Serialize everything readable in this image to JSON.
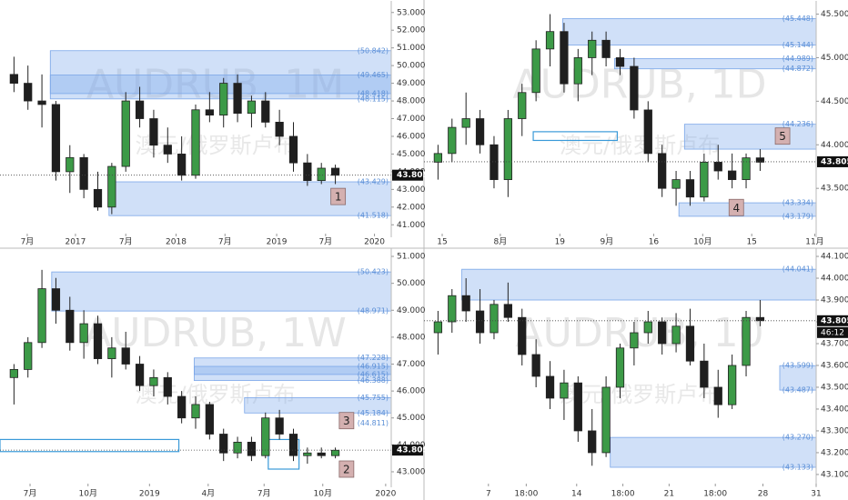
{
  "chart_data": [
    {
      "type": "candlestick",
      "watermark": "AUDRUB, 1M",
      "subtitle": "澳元/俄罗斯卢布",
      "up_color": "#3c9a47",
      "down_color": "#1f1f1f",
      "xlim": [
        -1,
        27
      ],
      "ylim": [
        40.5,
        53.45
      ],
      "xticks": [
        {
          "value": 0.95,
          "label": "7月"
        },
        {
          "value": 4.4,
          "label": "2017"
        },
        {
          "value": 8,
          "label": "7月"
        },
        {
          "value": 11.6,
          "label": "2018"
        },
        {
          "value": 15.1,
          "label": "7月"
        },
        {
          "value": 18.8,
          "label": "2019"
        },
        {
          "value": 22.3,
          "label": "7月"
        },
        {
          "value": 25.8,
          "label": "2020"
        }
      ],
      "yticks": [
        {
          "value": 41,
          "label": "41.000"
        },
        {
          "value": 42,
          "label": "42.000"
        },
        {
          "value": 43,
          "label": "43.000"
        },
        {
          "value": 44,
          "label": "44.000"
        },
        {
          "value": 45,
          "label": "45.000"
        },
        {
          "value": 46,
          "label": "46.000"
        },
        {
          "value": 47,
          "label": "47.000"
        },
        {
          "value": 48,
          "label": "48.000"
        },
        {
          "value": 49,
          "label": "49.000"
        },
        {
          "value": 50,
          "label": "50.000"
        },
        {
          "value": 51,
          "label": "51.000"
        },
        {
          "value": 52,
          "label": "52.000"
        },
        {
          "value": 53,
          "label": "53.000"
        }
      ],
      "x": [
        0,
        1,
        2,
        3,
        4,
        5,
        6,
        7,
        8,
        9,
        10,
        11,
        12,
        13,
        14,
        15,
        16,
        17,
        18,
        19,
        20,
        21,
        22,
        23
      ],
      "open": [
        49.5,
        49.0,
        48.0,
        47.8,
        44.0,
        44.8,
        43.0,
        42.0,
        44.3,
        48.0,
        47.0,
        45.5,
        45.0,
        43.8,
        47.5,
        47.2,
        49.0,
        47.3,
        48.0,
        46.8,
        46.0,
        44.5,
        43.5,
        44.2
      ],
      "high": [
        50.5,
        50.0,
        49.5,
        48.0,
        45.5,
        45.0,
        44.0,
        44.5,
        48.5,
        48.8,
        47.5,
        46.5,
        46.0,
        47.8,
        48.5,
        49.3,
        49.5,
        48.3,
        48.5,
        47.5,
        46.8,
        45.0,
        44.5,
        44.4
      ],
      "low": [
        48.5,
        47.5,
        46.5,
        43.5,
        42.8,
        42.5,
        41.8,
        41.6,
        44.0,
        46.5,
        44.8,
        44.5,
        43.5,
        43.6,
        46.8,
        46.5,
        46.8,
        46.5,
        46.5,
        45.5,
        44.0,
        43.2,
        43.3,
        43.3
      ],
      "close": [
        49.0,
        48.0,
        47.8,
        44.0,
        44.8,
        43.0,
        42.0,
        44.3,
        48.0,
        47.0,
        45.5,
        45.0,
        43.8,
        47.5,
        47.2,
        49.0,
        47.3,
        48.0,
        46.8,
        46.0,
        44.5,
        43.5,
        44.2,
        43.8
      ],
      "zones": [
        {
          "start": 2.6,
          "low": 48.418,
          "high": 50.842
        },
        {
          "start": 2.6,
          "low": 48.115,
          "high": 49.465
        },
        {
          "start": 6.8,
          "low": 41.518,
          "high": 43.429
        }
      ],
      "boxes": [],
      "levels": [
        {
          "value": 50.842,
          "label": "(50.842)"
        },
        {
          "value": 49.465,
          "label": "(49.465)"
        },
        {
          "value": 48.418,
          "label": "(48.418)"
        },
        {
          "value": 48.115,
          "label": "(48.115)"
        },
        {
          "value": 43.429,
          "label": "(43.429)"
        },
        {
          "value": 41.518,
          "label": "(41.518)"
        }
      ],
      "price": 43.805,
      "markers": [
        {
          "label": "1",
          "x": 23.2,
          "y": 42.6
        }
      ]
    },
    {
      "type": "candlestick",
      "watermark": "AUDRUB, 1D",
      "subtitle": "澳元/俄罗斯卢布",
      "up_color": "#3c9a47",
      "down_color": "#1f1f1f",
      "xlim": [
        -1,
        27
      ],
      "ylim": [
        42.98,
        45.61
      ],
      "xticks": [
        {
          "value": 0.3,
          "label": "15"
        },
        {
          "value": 4.45,
          "label": "8月"
        },
        {
          "value": 8.7,
          "label": "19"
        },
        {
          "value": 12.05,
          "label": "9月"
        },
        {
          "value": 15.4,
          "label": "16"
        },
        {
          "value": 18.9,
          "label": "10月"
        },
        {
          "value": 22.4,
          "label": "15"
        },
        {
          "value": 26.9,
          "label": "11月"
        }
      ],
      "yticks": [
        {
          "value": 43.5,
          "label": "43.500"
        },
        {
          "value": 44,
          "label": "44.000"
        },
        {
          "value": 44.5,
          "label": "44.500"
        },
        {
          "value": 45,
          "label": "45.000"
        },
        {
          "value": 45.5,
          "label": "45.500"
        }
      ],
      "x": [
        0,
        1,
        2,
        3,
        4,
        5,
        6,
        7,
        8,
        9,
        10,
        11,
        12,
        13,
        14,
        15,
        16,
        17,
        18,
        19,
        20,
        21,
        22,
        23
      ],
      "open": [
        43.8,
        43.9,
        44.2,
        44.3,
        44.0,
        43.6,
        44.3,
        44.6,
        45.1,
        45.3,
        44.7,
        45.0,
        45.2,
        45.0,
        44.9,
        44.4,
        43.9,
        43.5,
        43.6,
        43.4,
        43.8,
        43.7,
        43.6,
        43.85
      ],
      "high": [
        44.0,
        44.3,
        44.6,
        44.4,
        44.1,
        44.4,
        44.7,
        45.2,
        45.5,
        45.4,
        45.1,
        45.3,
        45.3,
        45.1,
        45.0,
        44.5,
        44.0,
        43.7,
        43.7,
        43.9,
        44.0,
        43.9,
        43.9,
        43.95
      ],
      "low": [
        43.6,
        43.8,
        44.0,
        43.9,
        43.5,
        43.4,
        44.1,
        44.5,
        44.9,
        44.6,
        44.5,
        44.8,
        44.9,
        44.8,
        44.3,
        43.8,
        43.4,
        43.3,
        43.3,
        43.35,
        43.6,
        43.5,
        43.5,
        43.7
      ],
      "close": [
        43.9,
        44.2,
        44.3,
        44.0,
        43.6,
        44.3,
        44.6,
        45.1,
        45.3,
        44.7,
        45.0,
        45.2,
        45.0,
        44.9,
        44.4,
        43.9,
        43.5,
        43.6,
        43.4,
        43.8,
        43.7,
        43.6,
        43.85,
        43.8
      ],
      "zones": [
        {
          "start": 8.9,
          "low": 45.144,
          "high": 45.448
        },
        {
          "start": 12.6,
          "low": 44.872,
          "high": 44.989
        },
        {
          "start": 17.6,
          "low": 43.95,
          "high": 44.236
        },
        {
          "start": 17.2,
          "low": 43.179,
          "high": 43.334
        }
      ],
      "boxes": [
        {
          "start": 6.8,
          "end": 12.8,
          "low": 44.05,
          "high": 44.15
        }
      ],
      "levels": [
        {
          "value": 45.448,
          "label": "(45.448)"
        },
        {
          "value": 45.144,
          "label": "(45.144)"
        },
        {
          "value": 44.989,
          "label": "(44.989)"
        },
        {
          "value": 44.872,
          "label": "(44.872)"
        },
        {
          "value": 44.236,
          "label": "(44.236)"
        },
        {
          "value": 43.334,
          "label": "(43.334)"
        },
        {
          "value": 43.179,
          "label": "(43.179)"
        }
      ],
      "price": 43.805,
      "markers": [
        {
          "label": "5",
          "x": 24.6,
          "y": 44.1
        },
        {
          "label": "4",
          "x": 21.3,
          "y": 43.28
        }
      ]
    },
    {
      "type": "candlestick",
      "watermark": "AUDRUB, 1W",
      "subtitle": "澳元/俄罗斯卢布",
      "up_color": "#3c9a47",
      "down_color": "#1f1f1f",
      "xlim": [
        -1,
        27
      ],
      "ylim": [
        42.56,
        51.17
      ],
      "xticks": [
        {
          "value": 1.15,
          "label": "7月"
        },
        {
          "value": 5.3,
          "label": "10月"
        },
        {
          "value": 9.7,
          "label": "2019"
        },
        {
          "value": 13.9,
          "label": "4月"
        },
        {
          "value": 17.9,
          "label": "7月"
        },
        {
          "value": 22.1,
          "label": "10月"
        },
        {
          "value": 26.6,
          "label": "2020"
        }
      ],
      "yticks": [
        {
          "value": 43,
          "label": "43.000"
        },
        {
          "value": 44,
          "label": "44.000"
        },
        {
          "value": 45,
          "label": "45.000"
        },
        {
          "value": 46,
          "label": "46.000"
        },
        {
          "value": 47,
          "label": "47.000"
        },
        {
          "value": 48,
          "label": "48.000"
        },
        {
          "value": 49,
          "label": "49.000"
        },
        {
          "value": 50,
          "label": "50.000"
        },
        {
          "value": 51,
          "label": "51.000"
        }
      ],
      "x": [
        0,
        1,
        2,
        3,
        4,
        5,
        6,
        7,
        8,
        9,
        10,
        11,
        12,
        13,
        14,
        15,
        16,
        17,
        18,
        19,
        20,
        21,
        22,
        23
      ],
      "open": [
        46.5,
        46.8,
        47.8,
        49.8,
        49.0,
        47.8,
        48.5,
        47.2,
        47.6,
        47.0,
        46.2,
        46.5,
        45.8,
        45.0,
        45.5,
        44.4,
        43.7,
        44.1,
        43.6,
        45.0,
        44.4,
        43.6,
        43.7,
        43.6
      ],
      "high": [
        47.0,
        48.0,
        50.5,
        50.2,
        49.5,
        49.0,
        48.8,
        48.0,
        48.2,
        47.3,
        46.8,
        46.7,
        46.0,
        45.8,
        45.6,
        44.6,
        44.3,
        44.3,
        45.2,
        45.3,
        44.6,
        43.9,
        43.9,
        43.9
      ],
      "low": [
        45.5,
        46.5,
        47.6,
        48.5,
        47.5,
        47.2,
        47.0,
        46.5,
        46.8,
        46.0,
        45.8,
        45.5,
        44.8,
        44.6,
        44.2,
        43.4,
        43.5,
        43.4,
        43.5,
        44.2,
        43.4,
        43.3,
        43.5,
        43.5
      ],
      "close": [
        46.8,
        47.8,
        49.8,
        49.0,
        47.8,
        48.5,
        47.2,
        47.6,
        47.0,
        46.2,
        46.5,
        45.8,
        45.0,
        45.5,
        44.4,
        43.7,
        44.1,
        43.6,
        45.0,
        44.4,
        43.6,
        43.7,
        43.6,
        43.8
      ],
      "zones": [
        {
          "start": 2.7,
          "low": 48.971,
          "high": 50.423
        },
        {
          "start": 12.9,
          "low": 46.615,
          "high": 47.228
        },
        {
          "start": 12.9,
          "low": 46.388,
          "high": 46.915
        },
        {
          "start": 16.5,
          "low": 45.184,
          "high": 45.755
        }
      ],
      "boxes": [
        {
          "start": -1,
          "end": 11.8,
          "low": 43.75,
          "high": 44.2
        },
        {
          "start": 18.2,
          "end": 20.4,
          "low": 43.1,
          "high": 44.2
        }
      ],
      "levels": [
        {
          "value": 50.423,
          "label": "(50.423)"
        },
        {
          "value": 48.971,
          "label": "(48.971)"
        },
        {
          "value": 47.228,
          "label": "(47.228)"
        },
        {
          "value": 46.915,
          "label": "(46.915)"
        },
        {
          "value": 46.615,
          "label": "(46.615)"
        },
        {
          "value": 46.388,
          "label": "(46.388)"
        },
        {
          "value": 45.755,
          "label": "(45.755)"
        },
        {
          "value": 45.184,
          "label": "(45.184)"
        },
        {
          "value": 44.811,
          "label": "(44.811)"
        }
      ],
      "price": 43.805,
      "markers": [
        {
          "label": "3",
          "x": 23.8,
          "y": 44.9
        },
        {
          "label": "2",
          "x": 23.8,
          "y": 43.1
        }
      ]
    },
    {
      "type": "candlestick",
      "watermark": "AUDRUB, 10",
      "subtitle": "澳元/俄罗斯卢布",
      "up_color": "#3c9a47",
      "down_color": "#1f1f1f",
      "xlim": [
        -1,
        27
      ],
      "ylim": [
        43.058,
        44.121
      ],
      "xticks": [
        {
          "value": 3.6,
          "label": "7"
        },
        {
          "value": 6.3,
          "label": "18:00"
        },
        {
          "value": 9.9,
          "label": "14"
        },
        {
          "value": 13.2,
          "label": "18:00"
        },
        {
          "value": 16.5,
          "label": "21"
        },
        {
          "value": 19.8,
          "label": "18:00"
        },
        {
          "value": 23.2,
          "label": "28"
        },
        {
          "value": 27,
          "label": "31"
        }
      ],
      "yticks": [
        {
          "value": 43.1,
          "label": "43.100"
        },
        {
          "value": 43.2,
          "label": "43.200"
        },
        {
          "value": 43.3,
          "label": "43.300"
        },
        {
          "value": 43.4,
          "label": "43.400"
        },
        {
          "value": 43.5,
          "label": "43.500"
        },
        {
          "value": 43.6,
          "label": "43.600"
        },
        {
          "value": 43.7,
          "label": "43.700"
        },
        {
          "value": 43.8,
          "label": "43.800"
        },
        {
          "value": 43.9,
          "label": "43.900"
        },
        {
          "value": 44,
          "label": "44.000"
        },
        {
          "value": 44.1,
          "label": "44.100"
        }
      ],
      "x": [
        0,
        1,
        2,
        3,
        4,
        5,
        6,
        7,
        8,
        9,
        10,
        11,
        12,
        13,
        14,
        15,
        16,
        17,
        18,
        19,
        20,
        21,
        22,
        23
      ],
      "open": [
        43.75,
        43.8,
        43.92,
        43.85,
        43.75,
        43.88,
        43.82,
        43.65,
        43.55,
        43.45,
        43.52,
        43.3,
        43.2,
        43.5,
        43.68,
        43.75,
        43.8,
        43.7,
        43.78,
        43.62,
        43.5,
        43.42,
        43.6,
        43.82
      ],
      "high": [
        43.85,
        43.95,
        44.0,
        43.95,
        43.9,
        43.98,
        43.86,
        43.72,
        43.62,
        43.58,
        43.55,
        43.4,
        43.55,
        43.7,
        43.8,
        43.85,
        43.82,
        43.84,
        43.86,
        43.7,
        43.58,
        43.65,
        43.85,
        43.9
      ],
      "low": [
        43.65,
        43.75,
        43.8,
        43.7,
        43.72,
        43.8,
        43.6,
        43.5,
        43.4,
        43.35,
        43.25,
        43.14,
        43.18,
        43.45,
        43.6,
        43.7,
        43.65,
        43.66,
        43.6,
        43.45,
        43.36,
        43.4,
        43.55,
        43.78
      ],
      "close": [
        43.8,
        43.92,
        43.85,
        43.75,
        43.88,
        43.82,
        43.65,
        43.55,
        43.45,
        43.52,
        43.3,
        43.2,
        43.5,
        43.68,
        43.75,
        43.8,
        43.7,
        43.78,
        43.62,
        43.5,
        43.42,
        43.6,
        43.82,
        43.805
      ],
      "zones": [
        {
          "start": 1.7,
          "low": 43.9,
          "high": 44.041
        },
        {
          "start": 24.4,
          "low": 43.487,
          "high": 43.599
        },
        {
          "start": 12.3,
          "low": 43.133,
          "high": 43.27
        }
      ],
      "boxes": [],
      "levels": [
        {
          "value": 44.041,
          "label": "(44.041)"
        },
        {
          "value": 43.599,
          "label": "(43.599)"
        },
        {
          "value": 43.487,
          "label": "(43.487)"
        },
        {
          "value": 43.27,
          "label": "(43.270)"
        },
        {
          "value": 43.133,
          "label": "(43.133)"
        }
      ],
      "price": 43.805,
      "countdown": "46:12",
      "markers": []
    }
  ]
}
